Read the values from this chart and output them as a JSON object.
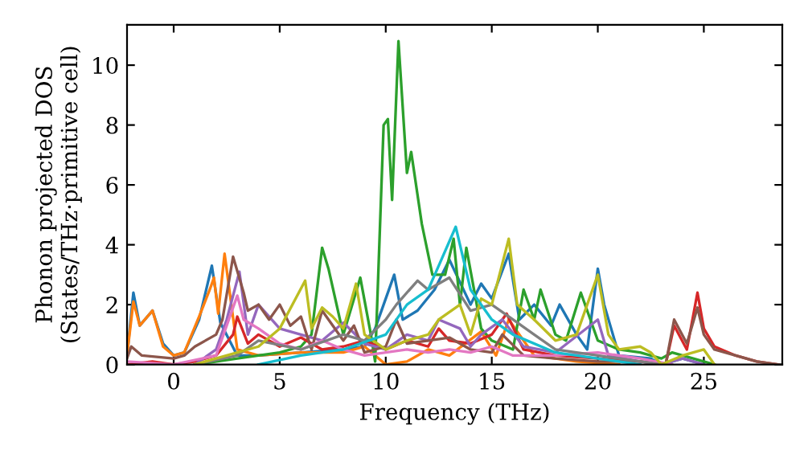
{
  "chart_data": {
    "type": "line",
    "xlabel": "Frequency (THz)",
    "ylabel": "Phonon projected DOS\n(States/THz·primitive cell)",
    "xlim": [
      -2.2,
      28.7
    ],
    "ylim": [
      0,
      11.35
    ],
    "xticks": [
      0,
      5,
      10,
      15,
      20,
      25
    ],
    "yticks": [
      0,
      2,
      4,
      6,
      8,
      10
    ],
    "grid": false,
    "marker": "none",
    "line_style": "solid",
    "series": [
      {
        "color": "#1f77b4",
        "x": [
          -2.2,
          -1.9,
          -1.6,
          -1.0,
          -0.5,
          0,
          0.5,
          1.2,
          1.8,
          2.2,
          3,
          4,
          6,
          8,
          9,
          9.5,
          10.4,
          10.8,
          11.5,
          12.3,
          13.0,
          14,
          14.5,
          15,
          15.8,
          16.3,
          17,
          17.8,
          18.2,
          19,
          19.5,
          20,
          20.3,
          21,
          22.5,
          23,
          24,
          25
        ],
        "values": [
          0.3,
          2.4,
          1.3,
          1.8,
          0.7,
          0.3,
          0.4,
          1.5,
          3.3,
          1.4,
          0.3,
          0.3,
          0.4,
          0.5,
          0.6,
          1.2,
          3.0,
          1.5,
          1.8,
          2.5,
          3.5,
          2.0,
          2.7,
          2.2,
          3.7,
          1.5,
          2.0,
          1.3,
          2.0,
          1.0,
          0.5,
          3.2,
          2.0,
          0.3,
          0.2,
          0,
          0.2,
          0
        ]
      },
      {
        "color": "#ff7f0e",
        "x": [
          -2.2,
          -1.9,
          -1.6,
          -1.0,
          -0.5,
          0,
          0.5,
          1.2,
          1.7,
          1.9,
          2.1,
          2.4,
          3,
          4,
          6,
          8,
          9,
          10,
          11,
          12,
          13,
          14.5,
          15.2,
          15.8,
          17,
          19,
          21
        ],
        "values": [
          0.3,
          2.1,
          1.3,
          1.8,
          0.6,
          0.3,
          0.4,
          1.6,
          2.5,
          2.9,
          1.7,
          3.7,
          0.5,
          0.3,
          0.4,
          0.4,
          0.6,
          0,
          0.1,
          0.5,
          0.3,
          1.1,
          0.3,
          1.5,
          0.3,
          0.1,
          0
        ]
      },
      {
        "color": "#2ca02c",
        "x": [
          1,
          3,
          5,
          6,
          6.5,
          7,
          7.3,
          8,
          8.8,
          9.3,
          9.5,
          9.9,
          10.1,
          10.3,
          10.6,
          11,
          11.2,
          11.7,
          12.2,
          12.8,
          13.2,
          13.5,
          13.8,
          14.5,
          15,
          16,
          16.5,
          17,
          17.3,
          18,
          18.5,
          19.2,
          20,
          21,
          22,
          23,
          23.5,
          24.5,
          25.5
        ],
        "values": [
          0,
          0.2,
          0.4,
          0.6,
          1.0,
          3.9,
          3.2,
          1.0,
          2.9,
          1.0,
          0.1,
          8.0,
          8.2,
          5.5,
          10.8,
          6.4,
          7.1,
          4.7,
          3.0,
          3.0,
          4.2,
          2.0,
          3.9,
          1.2,
          0.8,
          0.5,
          2.5,
          1.5,
          2.5,
          1.0,
          0.8,
          2.4,
          0.8,
          0.5,
          0.4,
          0.2,
          0.4,
          0.2,
          0
        ]
      },
      {
        "color": "#d62728",
        "x": [
          -2.2,
          -1,
          0,
          1,
          2,
          2.8,
          3,
          3.5,
          4,
          5,
          6,
          7,
          8,
          9,
          10,
          11,
          12,
          12.5,
          13,
          14,
          15,
          15.7,
          16.5,
          18,
          20,
          22,
          23.2,
          23.6,
          24.2,
          24.7,
          25,
          25.5,
          26.5,
          27.5,
          28.5
        ],
        "values": [
          0,
          0.1,
          0,
          0.1,
          0.3,
          1.0,
          1.6,
          0.7,
          1.0,
          0.6,
          0.9,
          0.5,
          0.6,
          0.8,
          0.5,
          0.8,
          0.6,
          1.2,
          0.8,
          0.7,
          1.0,
          1.7,
          0.5,
          0.3,
          0.2,
          0.1,
          0,
          1.3,
          0.5,
          2.4,
          1.2,
          0.6,
          0.3,
          0.1,
          0
        ]
      },
      {
        "color": "#9467bd",
        "x": [
          1,
          2,
          2.5,
          3.1,
          3.5,
          4,
          5,
          6,
          7,
          8,
          9,
          10,
          11,
          12,
          12.5,
          13.5,
          14,
          14.5,
          15.5,
          16.5,
          18,
          20,
          20.5,
          22,
          23,
          24,
          25
        ],
        "values": [
          0,
          0.5,
          1.5,
          3.1,
          1.0,
          2.0,
          1.2,
          1.0,
          0.8,
          1.4,
          0.7,
          0.5,
          1.0,
          0.8,
          1.5,
          1.2,
          0.6,
          1.0,
          1.5,
          0.6,
          0.4,
          1.5,
          0.3,
          0.1,
          0,
          0.2,
          0
        ]
      },
      {
        "color": "#8c564b",
        "x": [
          -2.2,
          -2,
          -1.5,
          0,
          0.5,
          1,
          2,
          2.3,
          2.8,
          3.3,
          3.5,
          4,
          4.5,
          5,
          5.5,
          6,
          6.5,
          7,
          8,
          8.5,
          9,
          10,
          10.5,
          11,
          12,
          13,
          14,
          15,
          15.5,
          16.5,
          18,
          20,
          22,
          23.2,
          23.6,
          24.2,
          24.7,
          25,
          25.5,
          26.5,
          27.5,
          28.5
        ],
        "values": [
          0.2,
          0.6,
          0.3,
          0.2,
          0.3,
          0.6,
          1.0,
          1.5,
          3.6,
          2.4,
          1.8,
          2.0,
          1.5,
          2.0,
          1.3,
          1.6,
          0.5,
          1.8,
          0.8,
          1.3,
          0.4,
          0.6,
          1.5,
          0.7,
          0.8,
          0.9,
          0.5,
          0.4,
          1.0,
          0.3,
          0.2,
          0.1,
          0.1,
          0,
          1.5,
          0.7,
          1.9,
          1.0,
          0.5,
          0.3,
          0.1,
          0
        ]
      },
      {
        "color": "#e377c2",
        "x": [
          -2.2,
          0,
          2,
          3,
          3.3,
          4,
          5,
          6,
          7,
          8,
          9,
          10,
          11,
          12,
          13,
          14,
          15,
          16,
          18,
          20,
          22,
          23.5
        ],
        "values": [
          0.1,
          0,
          0.3,
          2.3,
          1.5,
          1.2,
          0.7,
          0.5,
          0.8,
          0.5,
          0.3,
          0.4,
          0.5,
          0.4,
          0.5,
          0.4,
          0.6,
          0.3,
          0.3,
          0.4,
          0.2,
          0
        ]
      },
      {
        "color": "#7f7f7f",
        "x": [
          1,
          3,
          4,
          6,
          8,
          9,
          10,
          10.5,
          11.5,
          12,
          13,
          14,
          15,
          16,
          17,
          18,
          20,
          22,
          23
        ],
        "values": [
          0,
          0.3,
          0.8,
          0.5,
          1.0,
          0.8,
          1.5,
          2.0,
          2.8,
          2.5,
          2.9,
          1.8,
          2.0,
          1.5,
          1.0,
          0.5,
          0.3,
          0.1,
          0
        ]
      },
      {
        "color": "#bcbd22",
        "x": [
          1,
          3,
          4,
          5,
          6.2,
          6.5,
          7,
          7.5,
          8,
          8.6,
          9,
          10,
          11,
          12,
          12.5,
          13.5,
          14,
          14.5,
          15,
          15.8,
          16.2,
          17,
          18,
          19,
          20,
          20.5,
          21,
          22,
          22.5,
          23,
          24,
          25,
          25.5
        ],
        "values": [
          0,
          0.4,
          0.6,
          1.2,
          2.8,
          1.2,
          1.9,
          1.6,
          1.2,
          2.7,
          1.0,
          0.5,
          0.8,
          1.0,
          1.5,
          2.0,
          1.0,
          2.2,
          2.0,
          4.2,
          2.0,
          1.5,
          0.8,
          1.0,
          3.0,
          1.0,
          0.5,
          0.6,
          0.4,
          0,
          0.3,
          0.5,
          0
        ]
      },
      {
        "color": "#17becf",
        "x": [
          4,
          6,
          8,
          10,
          11,
          12,
          12.5,
          13.3,
          14,
          15,
          16,
          18,
          20,
          22
        ],
        "values": [
          0,
          0.3,
          0.5,
          1.0,
          2.0,
          2.5,
          3.3,
          4.6,
          2.5,
          1.5,
          1.0,
          0.4,
          0.2,
          0
        ]
      }
    ]
  }
}
